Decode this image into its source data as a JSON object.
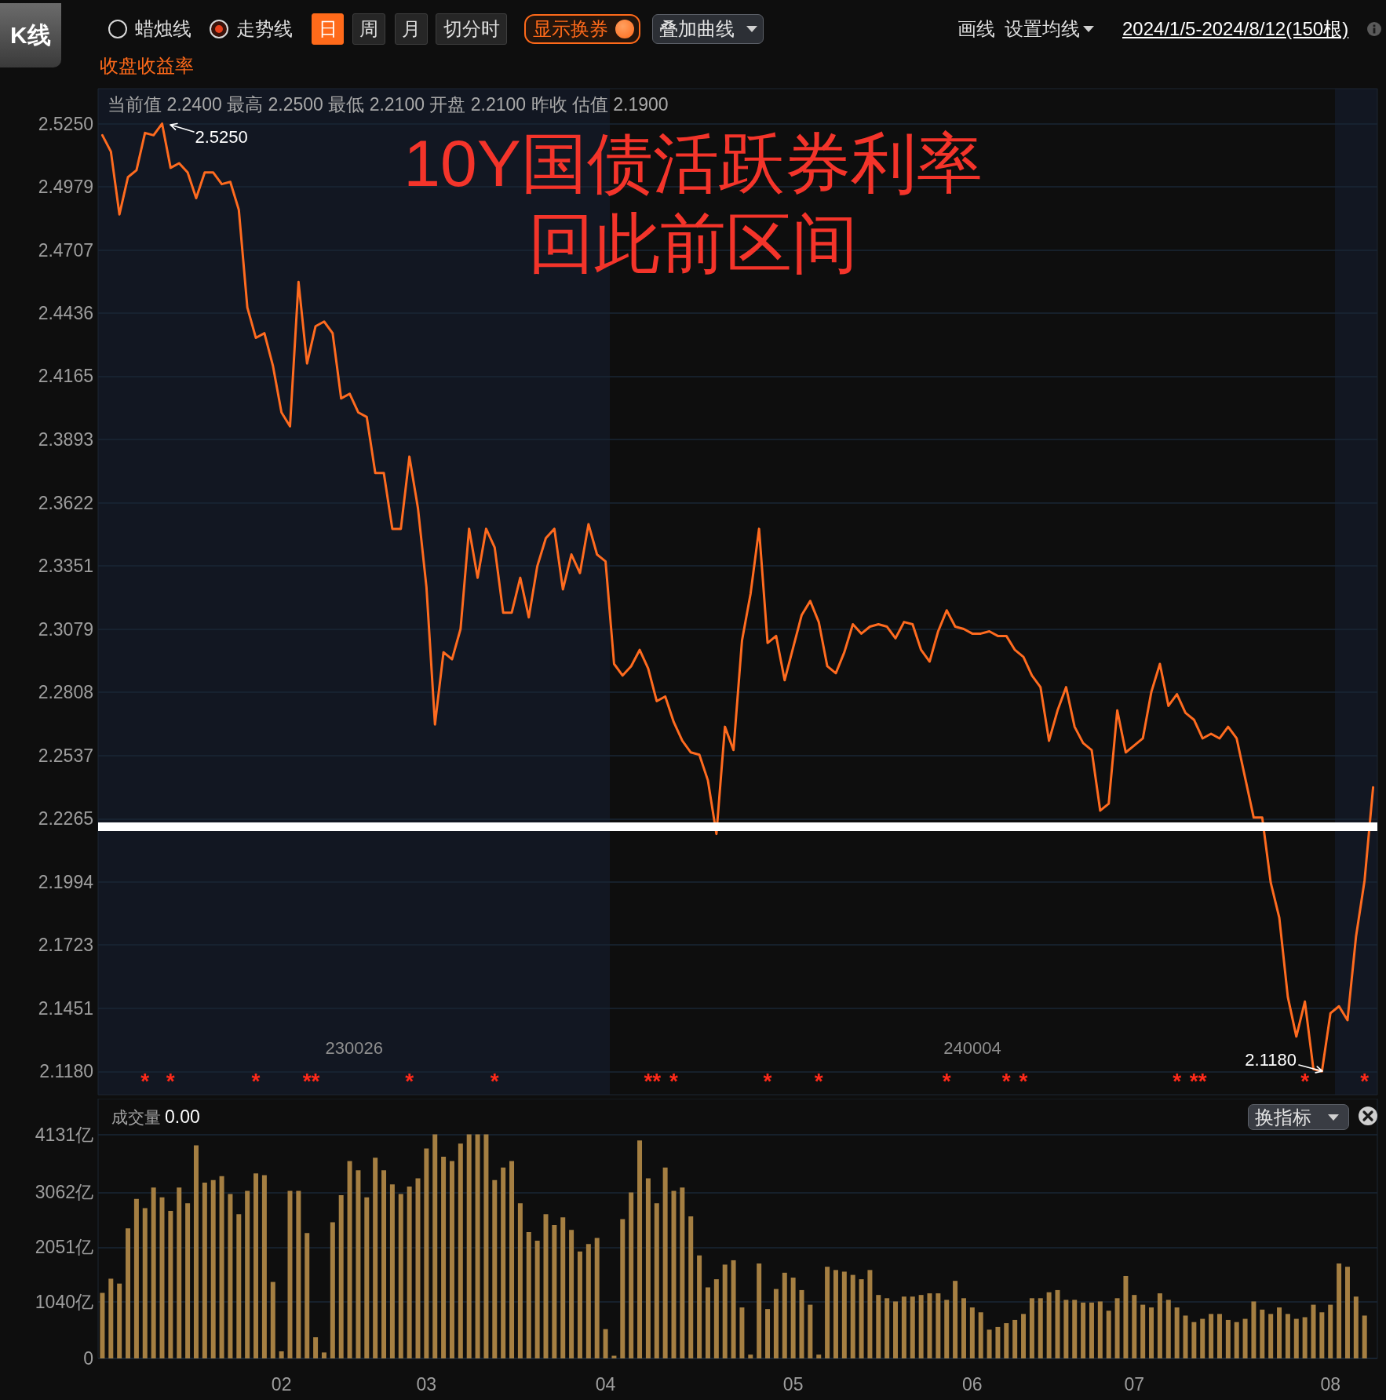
{
  "chart_data": [
    {
      "type": "line",
      "title": "10Y国债活跃券利率",
      "subtitle": "回此前区间",
      "ylabel": "收盘收益率",
      "categories": [
        null,
        null,
        null,
        null,
        null,
        null,
        null,
        null,
        null,
        null,
        null,
        null,
        null,
        null,
        null,
        null,
        null,
        null,
        null,
        null,
        null,
        "02",
        null,
        null,
        null,
        null,
        null,
        null,
        null,
        null,
        null,
        null,
        null,
        null,
        null,
        null,
        null,
        null,
        "03",
        null,
        null,
        null,
        null,
        null,
        null,
        null,
        null,
        null,
        null,
        null,
        null,
        null,
        null,
        null,
        null,
        null,
        null,
        null,
        null,
        "04",
        null,
        null,
        null,
        null,
        null,
        null,
        null,
        null,
        null,
        null,
        null,
        null,
        null,
        null,
        null,
        null,
        null,
        null,
        null,
        null,
        null,
        "05",
        null,
        null,
        null,
        null,
        null,
        null,
        null,
        null,
        null,
        null,
        null,
        null,
        null,
        null,
        null,
        null,
        null,
        null,
        null,
        null,
        "06",
        null,
        null,
        null,
        null,
        null,
        null,
        null,
        null,
        null,
        null,
        null,
        null,
        null,
        null,
        null,
        null,
        null,
        null,
        "07",
        null,
        null,
        null,
        null,
        null,
        null,
        null,
        null,
        null,
        null,
        null,
        null,
        null,
        null,
        null,
        null,
        null,
        null,
        null,
        null,
        null,
        null,
        "08",
        null,
        null,
        null,
        null,
        null
      ],
      "values": [
        2.52,
        2.513,
        2.486,
        2.502,
        2.505,
        2.521,
        2.52,
        2.525,
        2.506,
        2.508,
        2.504,
        2.493,
        2.504,
        2.504,
        2.499,
        2.5,
        2.488,
        2.446,
        2.433,
        2.435,
        2.421,
        2.401,
        2.395,
        2.457,
        2.422,
        2.438,
        2.44,
        2.435,
        2.407,
        2.409,
        2.401,
        2.399,
        2.375,
        2.375,
        2.351,
        2.351,
        2.382,
        2.36,
        2.326,
        2.267,
        2.298,
        2.295,
        2.308,
        2.351,
        2.33,
        2.351,
        2.343,
        2.315,
        2.315,
        2.33,
        2.313,
        2.335,
        2.347,
        2.351,
        2.325,
        2.34,
        2.332,
        2.353,
        2.34,
        2.337,
        2.293,
        2.288,
        2.292,
        2.299,
        2.291,
        2.277,
        2.279,
        2.268,
        2.26,
        2.255,
        2.254,
        2.243,
        2.22,
        2.266,
        2.256,
        2.303,
        2.323,
        2.351,
        2.302,
        2.305,
        2.286,
        2.3,
        2.314,
        2.32,
        2.311,
        2.292,
        2.289,
        2.298,
        2.31,
        2.306,
        2.309,
        2.31,
        2.309,
        2.304,
        2.311,
        2.31,
        2.299,
        2.294,
        2.307,
        2.316,
        2.309,
        2.308,
        2.306,
        2.306,
        2.307,
        2.305,
        2.305,
        2.299,
        2.296,
        2.288,
        2.283,
        2.26,
        2.273,
        2.283,
        2.266,
        2.259,
        2.256,
        2.23,
        2.233,
        2.273,
        2.255,
        2.258,
        2.261,
        2.281,
        2.293,
        2.275,
        2.28,
        2.272,
        2.269,
        2.261,
        2.263,
        2.261,
        2.266,
        2.261,
        2.244,
        2.227,
        2.227,
        2.199,
        2.184,
        2.15,
        2.133,
        2.148,
        2.119,
        2.118,
        2.143,
        2.146,
        2.14,
        2.176,
        2.2,
        2.24
      ],
      "color": "#ff6b1f",
      "ylim": [
        2.108,
        2.54
      ],
      "yticks": [
        {
          "value": 2.118,
          "label": "2.1180"
        },
        {
          "value": 2.1451,
          "label": "2.1451"
        },
        {
          "value": 2.1723,
          "label": "2.1723"
        },
        {
          "value": 2.1994,
          "label": "2.1994"
        },
        {
          "value": 2.2265,
          "label": "2.2265"
        },
        {
          "value": 2.2537,
          "label": "2.2537"
        },
        {
          "value": 2.2808,
          "label": "2.2808"
        },
        {
          "value": 2.3079,
          "label": "2.3079"
        },
        {
          "value": 2.3351,
          "label": "2.3351"
        },
        {
          "value": 2.3622,
          "label": "2.3622"
        },
        {
          "value": 2.3893,
          "label": "2.3893"
        },
        {
          "value": 2.4165,
          "label": "2.4165"
        },
        {
          "value": 2.4436,
          "label": "2.4436"
        },
        {
          "value": 2.4707,
          "label": "2.4707"
        },
        {
          "value": 2.4979,
          "label": "2.4979"
        },
        {
          "value": 2.525,
          "label": "2.5250"
        }
      ],
      "tick_labels": "y",
      "grid": "y",
      "ref_lines": [
        {
          "axis": "y",
          "value": 2.223,
          "color": "#ffffff"
        }
      ],
      "annotations": [
        "K线",
        "蜡烛线",
        "走势线",
        "日",
        "周",
        "月",
        "切分时",
        "显示换券",
        "叠加曲线",
        "画线",
        "设置均线",
        "2024/1/5-2024/8/12(150根)",
        "当前值 2.2400 最高 2.2500 最低 2.2100 开盘 2.2100 昨收 估值 2.1900",
        "2.5250",
        "2.1180",
        "230026",
        "240004",
        "*",
        "*",
        "*",
        "*",
        "*",
        "*",
        "*",
        "*",
        "*",
        "*",
        "*",
        "*",
        "*",
        "*",
        "*",
        "*",
        "*",
        "*",
        "*",
        "*"
      ]
    },
    {
      "type": "bar",
      "ylabel": "成交量",
      "categories": [
        null,
        null,
        null,
        null,
        null,
        null,
        null,
        null,
        null,
        null,
        null,
        null,
        null,
        null,
        null,
        null,
        null,
        null,
        null,
        null,
        null,
        "02",
        null,
        null,
        null,
        null,
        null,
        null,
        null,
        null,
        null,
        null,
        null,
        null,
        null,
        null,
        null,
        null,
        "03",
        null,
        null,
        null,
        null,
        null,
        null,
        null,
        null,
        null,
        null,
        null,
        null,
        null,
        null,
        null,
        null,
        null,
        null,
        null,
        null,
        "04",
        null,
        null,
        null,
        null,
        null,
        null,
        null,
        null,
        null,
        null,
        null,
        null,
        null,
        null,
        null,
        null,
        null,
        null,
        null,
        null,
        null,
        "05",
        null,
        null,
        null,
        null,
        null,
        null,
        null,
        null,
        null,
        null,
        null,
        null,
        null,
        null,
        null,
        null,
        null,
        null,
        null,
        null,
        "06",
        null,
        null,
        null,
        null,
        null,
        null,
        null,
        null,
        null,
        null,
        null,
        null,
        null,
        null,
        null,
        null,
        null,
        null,
        "07",
        null,
        null,
        null,
        null,
        null,
        null,
        null,
        null,
        null,
        null,
        null,
        null,
        null,
        null,
        null,
        null,
        null,
        null,
        null,
        null,
        null,
        null,
        "08",
        null,
        null,
        null,
        null,
        null
      ],
      "values": [
        1210,
        1470,
        1380,
        2400,
        2940,
        2770,
        3150,
        2970,
        2720,
        3150,
        2860,
        3930,
        3240,
        3290,
        3360,
        3030,
        2660,
        3090,
        3410,
        3380,
        1410,
        130,
        3090,
        3090,
        2310,
        390,
        110,
        2510,
        3010,
        3640,
        3470,
        2970,
        3700,
        3470,
        3210,
        3030,
        3170,
        3320,
        3870,
        4130,
        3720,
        3640,
        3960,
        4130,
        4130,
        4130,
        3290,
        3520,
        3640,
        2860,
        2330,
        2170,
        2660,
        2460,
        2600,
        2370,
        1970,
        2110,
        2220,
        540,
        50,
        2570,
        3060,
        4020,
        3320,
        2860,
        3520,
        3090,
        3150,
        2620,
        1900,
        1310,
        1460,
        1730,
        1810,
        940,
        70,
        1750,
        910,
        1280,
        1580,
        1490,
        1260,
        990,
        70,
        1690,
        1630,
        1600,
        1540,
        1460,
        1630,
        1170,
        1110,
        1050,
        1140,
        1140,
        1170,
        1200,
        1200,
        1080,
        1430,
        1110,
        940,
        850,
        530,
        580,
        650,
        710,
        820,
        1110,
        1110,
        1220,
        1260,
        1080,
        1080,
        1030,
        1030,
        1050,
        880,
        1110,
        1520,
        1170,
        990,
        940,
        1200,
        1080,
        940,
        790,
        670,
        730,
        820,
        820,
        710,
        670,
        730,
        1050,
        900,
        820,
        940,
        820,
        730,
        760,
        990,
        850,
        990,
        1750,
        1690,
        1140,
        790,
        0
      ],
      "color": "#a57f42",
      "ylim": [
        0,
        4790
      ],
      "yticks": [
        0,
        {
          "value": 1040,
          "label": "1040亿"
        },
        {
          "value": 2051,
          "label": "2051亿"
        },
        {
          "value": 3062,
          "label": "3062亿"
        },
        {
          "value": 4131,
          "label": "4131亿"
        }
      ],
      "grid": "y",
      "annotations": [
        "0.00",
        "换指标"
      ]
    }
  ]
}
